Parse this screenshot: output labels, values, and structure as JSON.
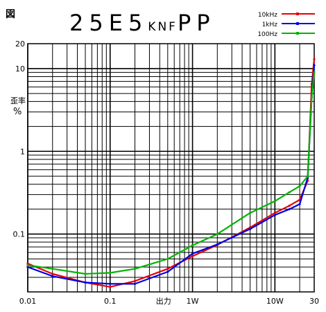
{
  "figure_label": "図",
  "title_main": "25E5",
  "title_sub": "KNF",
  "title_end": "PP",
  "y_label_word": "歪率",
  "y_label_unit": "%",
  "chart_data": {
    "type": "line",
    "title": "25E5KNFPP",
    "xlabel": "出力",
    "ylabel": "歪率 %",
    "x_scale": "log",
    "y_scale": "log",
    "xlim": [
      0.01,
      30
    ],
    "ylim": [
      0.02,
      20
    ],
    "grid": true,
    "legend_position": "top-right",
    "x_tick_labels": [
      {
        "value": 0.01,
        "label": "0.01"
      },
      {
        "value": 0.1,
        "label": "0.1"
      },
      {
        "value": 1,
        "label": "1W"
      },
      {
        "value": 10,
        "label": "10W"
      },
      {
        "value": 30,
        "label": "30"
      }
    ],
    "y_tick_labels": [
      {
        "value": 20,
        "label": "20"
      },
      {
        "value": 10,
        "label": "10"
      },
      {
        "value": 1,
        "label": "1"
      },
      {
        "value": 0.1,
        "label": "0.1"
      }
    ],
    "x_axis_caption": {
      "value": 0.5,
      "label": "出力"
    },
    "series": [
      {
        "name": "10kHz",
        "color": "#e60000",
        "x": [
          0.01,
          0.02,
          0.05,
          0.1,
          0.2,
          0.5,
          1,
          2,
          5,
          10,
          15,
          20,
          25,
          28,
          30
        ],
        "y": [
          0.044,
          0.033,
          0.026,
          0.023,
          0.027,
          0.038,
          0.054,
          0.074,
          0.12,
          0.18,
          0.22,
          0.26,
          0.44,
          6.5,
          13
        ]
      },
      {
        "name": "1kHz",
        "color": "#0000e6",
        "x": [
          0.01,
          0.02,
          0.05,
          0.1,
          0.2,
          0.5,
          1,
          2,
          5,
          10,
          15,
          20,
          25,
          28,
          30
        ],
        "y": [
          0.04,
          0.031,
          0.026,
          0.025,
          0.025,
          0.035,
          0.058,
          0.075,
          0.115,
          0.17,
          0.2,
          0.23,
          0.48,
          4.5,
          11
        ]
      },
      {
        "name": "100Hz",
        "color": "#00b400",
        "x": [
          0.01,
          0.02,
          0.05,
          0.1,
          0.2,
          0.5,
          1,
          2,
          5,
          10,
          15,
          20,
          25,
          28,
          30
        ],
        "y": [
          0.042,
          0.038,
          0.033,
          0.034,
          0.038,
          0.05,
          0.073,
          0.1,
          0.18,
          0.25,
          0.32,
          0.38,
          0.5,
          4.5,
          9
        ]
      }
    ]
  }
}
